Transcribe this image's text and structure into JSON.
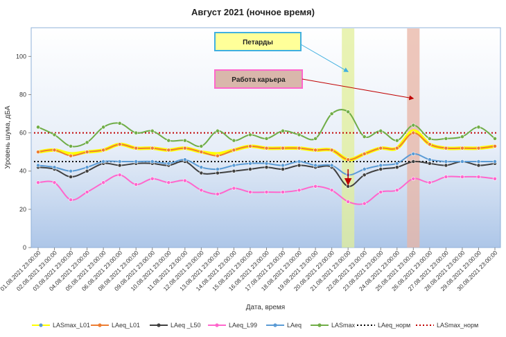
{
  "chart_data": {
    "type": "line",
    "title": "Август 2021 (ночное время)",
    "xlabel": "Дата, время",
    "ylabel": "Уровень шума, дБА",
    "ylim": [
      0,
      115
    ],
    "yticks": [
      0,
      20,
      40,
      60,
      80,
      100
    ],
    "grid": false,
    "legend_position": "bottom",
    "categories": [
      "01.08.2021 23:00:00",
      "02.08.2021 23:00:00",
      "03.08.2021 23:00:00",
      "04.08.2021 23:00:00",
      "05.08.2021 23:00:00",
      "06.08.2021 23:00:00",
      "08.08.2021 23:00:00",
      "09.08.2021 23:00:00",
      "10.08.2021 23:00:00",
      "11.08.2021 23:00:00",
      "12.08.2021 23:00:00",
      "13.08.2021 23:00:00",
      "14.08.2021 23:00:00",
      "15.08.2021 23:00:00",
      "16.08.2021 23:00:00",
      "17.08.2021 23:00:00",
      "18.08.2021 23:00:00",
      "19.08.2021 23:00:00",
      "20.08.2021 23:00:00",
      "21.08.2021 23:00:00",
      "22.08.2021 23:00:00",
      "23.08.2021 23:00:00",
      "24.08.2021 23:00:00",
      "25.08.2021 23:00:00",
      "26.08.2021 23:00:00",
      "27.08.2021 23:00:00",
      "28.08.2021 23:00:00",
      "29.08.2021 23:00:00",
      "30.08.2021 23:00:00"
    ],
    "series": [
      {
        "name": "LASmax_L01",
        "color": "#ffff00",
        "marker": true,
        "style": "solid",
        "values": [
          50,
          51,
          49,
          50,
          51,
          54,
          52,
          52,
          51,
          52,
          50,
          49,
          51,
          53,
          52,
          52,
          52,
          51,
          51,
          46,
          49,
          52,
          52,
          61,
          54,
          52,
          52,
          52,
          53
        ]
      },
      {
        "name": "LAeq_L01",
        "color": "#ed7d31",
        "marker": true,
        "style": "solid",
        "values": [
          50,
          51,
          48,
          50,
          51,
          54,
          52,
          52,
          51,
          52,
          50,
          48,
          51,
          53,
          52,
          52,
          52,
          51,
          51,
          46,
          49,
          52,
          52,
          60,
          54,
          52,
          52,
          52,
          53
        ]
      },
      {
        "name": "LAeq _L50",
        "color": "#404040",
        "marker": true,
        "style": "solid",
        "values": [
          42,
          41,
          37,
          40,
          44,
          43,
          44,
          44,
          43,
          45,
          39,
          39,
          40,
          41,
          42,
          41,
          43,
          42,
          42,
          32,
          38,
          41,
          42,
          45,
          44,
          43,
          45,
          43,
          44
        ]
      },
      {
        "name": "LAeq_L99",
        "color": "#ff66cc",
        "marker": true,
        "style": "solid",
        "values": [
          34,
          34,
          25,
          29,
          34,
          38,
          33,
          36,
          34,
          35,
          30,
          28,
          31,
          29,
          29,
          29,
          30,
          32,
          30,
          24,
          23,
          29,
          30,
          36,
          34,
          37,
          37,
          37,
          36
        ]
      },
      {
        "name": "LAeq",
        "color": "#5b9bd5",
        "marker": true,
        "style": "solid",
        "values": [
          43,
          42,
          40,
          42,
          45,
          45,
          45,
          45,
          44,
          46,
          42,
          41,
          43,
          44,
          44,
          43,
          45,
          43,
          43,
          38,
          41,
          43,
          44,
          49,
          46,
          45,
          45,
          45,
          45
        ]
      },
      {
        "name": "LASmax",
        "color": "#70ad47",
        "marker": true,
        "style": "solid",
        "values": [
          63,
          59,
          53,
          55,
          63,
          65,
          60,
          61,
          56,
          56,
          53,
          61,
          56,
          59,
          57,
          61,
          59,
          57,
          70,
          71,
          58,
          61,
          56,
          64,
          57,
          57,
          58,
          63,
          57
        ]
      },
      {
        "name": "LAeq_норм",
        "color": "#000000",
        "marker": false,
        "style": "dotted",
        "values": [
          45,
          45,
          45,
          45,
          45,
          45,
          45,
          45,
          45,
          45,
          45,
          45,
          45,
          45,
          45,
          45,
          45,
          45,
          45,
          45,
          45,
          45,
          45,
          45,
          45,
          45,
          45,
          45,
          45
        ]
      },
      {
        "name": "LASmax_норм",
        "color": "#c00000",
        "marker": false,
        "style": "dotted",
        "values": [
          60,
          60,
          60,
          60,
          60,
          60,
          60,
          60,
          60,
          60,
          60,
          60,
          60,
          60,
          60,
          60,
          60,
          60,
          60,
          60,
          60,
          60,
          60,
          60,
          60,
          60,
          60,
          60,
          60
        ]
      }
    ],
    "highlights": [
      {
        "index": 19,
        "color": "#e2ef9a"
      },
      {
        "index": 23,
        "color": "#e8b4a4"
      }
    ],
    "annotations": [
      {
        "text": "Петарды",
        "box_color": "#ffff99",
        "border_color": "#40b0e0",
        "arrow_color": "#40b0e0",
        "target_index": 19,
        "target_value": 92
      },
      {
        "text": "Работа карьера",
        "box_color": "#d9b7ab",
        "border_color": "#ff66cc",
        "arrow_color": "#c00000",
        "target_index": 23,
        "target_value": 78
      }
    ],
    "event_arrow": {
      "index": 19,
      "from_value": 41,
      "to_value": 33,
      "color": "#c00000"
    }
  }
}
